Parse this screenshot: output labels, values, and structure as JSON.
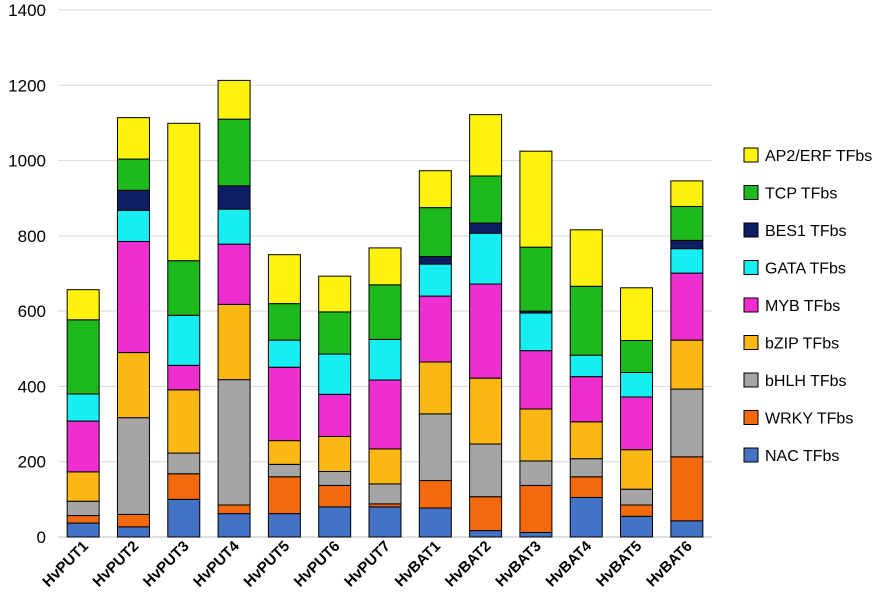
{
  "chart_data": {
    "type": "bar",
    "stacked": true,
    "title": "",
    "xlabel": "",
    "ylabel": "",
    "ylim": [
      0,
      1400
    ],
    "yticks": [
      0,
      200,
      400,
      600,
      800,
      1000,
      1200,
      1400
    ],
    "grid": true,
    "legend_position": "right",
    "categories": [
      "HvPUT1",
      "HvPUT2",
      "HvPUT3",
      "HvPUT4",
      "HvPUT5",
      "HvPUT6",
      "HvPUT7",
      "HvBAT1",
      "HvBAT2",
      "HvBAT3",
      "HvBAT4",
      "HvBAT5",
      "HvBAT6"
    ],
    "series": [
      {
        "name": "NAC TFbs",
        "color": "#4472C4",
        "values": [
          37,
          27,
          100,
          62,
          62,
          80,
          80,
          77,
          17,
          12,
          105,
          55,
          43
        ]
      },
      {
        "name": "WRKY TFbs",
        "color": "#F26A0D",
        "values": [
          20,
          33,
          68,
          23,
          98,
          57,
          8,
          73,
          90,
          125,
          55,
          30,
          170
        ]
      },
      {
        "name": "bHLH TFbs",
        "color": "#A5A5A5",
        "values": [
          38,
          257,
          55,
          333,
          33,
          37,
          53,
          177,
          140,
          65,
          48,
          42,
          180
        ]
      },
      {
        "name": "bZIP TFbs",
        "color": "#FBB714",
        "values": [
          78,
          173,
          168,
          200,
          63,
          93,
          93,
          138,
          175,
          138,
          98,
          105,
          130
        ]
      },
      {
        "name": "MYB TFbs",
        "color": "#EE2ECF",
        "values": [
          135,
          295,
          65,
          160,
          195,
          112,
          183,
          175,
          250,
          155,
          120,
          140,
          178
        ]
      },
      {
        "name": "GATA TFbs",
        "color": "#17EEF2",
        "values": [
          72,
          83,
          133,
          93,
          72,
          107,
          108,
          85,
          135,
          100,
          57,
          65,
          65
        ]
      },
      {
        "name": "BES1 TFbs",
        "color": "#0E1E64",
        "values": [
          0,
          53,
          0,
          62,
          0,
          0,
          0,
          20,
          27,
          5,
          0,
          0,
          22
        ]
      },
      {
        "name": "TCP TFbs",
        "color": "#1CBA1C",
        "values": [
          197,
          83,
          145,
          177,
          97,
          112,
          145,
          130,
          125,
          170,
          183,
          85,
          90
        ]
      },
      {
        "name": "AP2/ERF TFbs",
        "color": "#FFF20F",
        "values": [
          80,
          110,
          365,
          103,
          130,
          95,
          98,
          98,
          163,
          255,
          150,
          140,
          68
        ]
      }
    ],
    "legend_order": [
      "AP2/ERF TFbs",
      "TCP TFbs",
      "BES1 TFbs",
      "GATA TFbs",
      "MYB TFbs",
      "bZIP TFbs",
      "bHLH TFbs",
      "WRKY TFbs",
      "NAC TFbs"
    ]
  }
}
